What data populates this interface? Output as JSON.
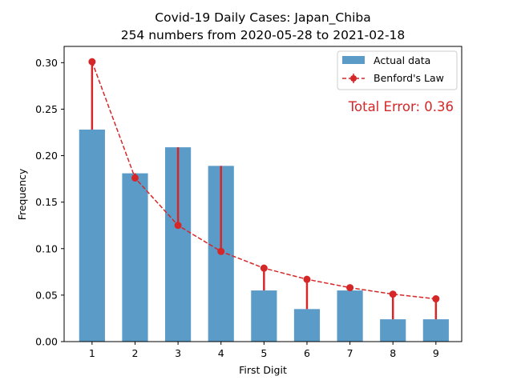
{
  "chart_data": {
    "type": "bar",
    "title": "Covid-19 Daily Cases: Japan_Chiba",
    "subtitle": "254 numbers from 2020-05-28 to 2021-02-18",
    "xlabel": "First Digit",
    "ylabel": "Frequency",
    "categories": [
      "1",
      "2",
      "3",
      "4",
      "5",
      "6",
      "7",
      "8",
      "9"
    ],
    "ylim": [
      0,
      0.3175
    ],
    "yticks": [
      "0.00",
      "0.05",
      "0.10",
      "0.15",
      "0.20",
      "0.25",
      "0.30"
    ],
    "grid": false,
    "legend_position": "top-right",
    "series": [
      {
        "name": "Actual data",
        "kind": "bar",
        "color": "#5b9bc8",
        "values": [
          0.228,
          0.181,
          0.209,
          0.189,
          0.055,
          0.035,
          0.055,
          0.024,
          0.024
        ]
      },
      {
        "name": "Benford's Law",
        "kind": "line",
        "color": "#d62728",
        "style": "dashed-with-markers",
        "values": [
          0.301,
          0.176,
          0.125,
          0.097,
          0.079,
          0.067,
          0.058,
          0.051,
          0.046
        ]
      }
    ],
    "annotation": {
      "text": "Total Error: 0.36",
      "color": "#d62728"
    }
  }
}
